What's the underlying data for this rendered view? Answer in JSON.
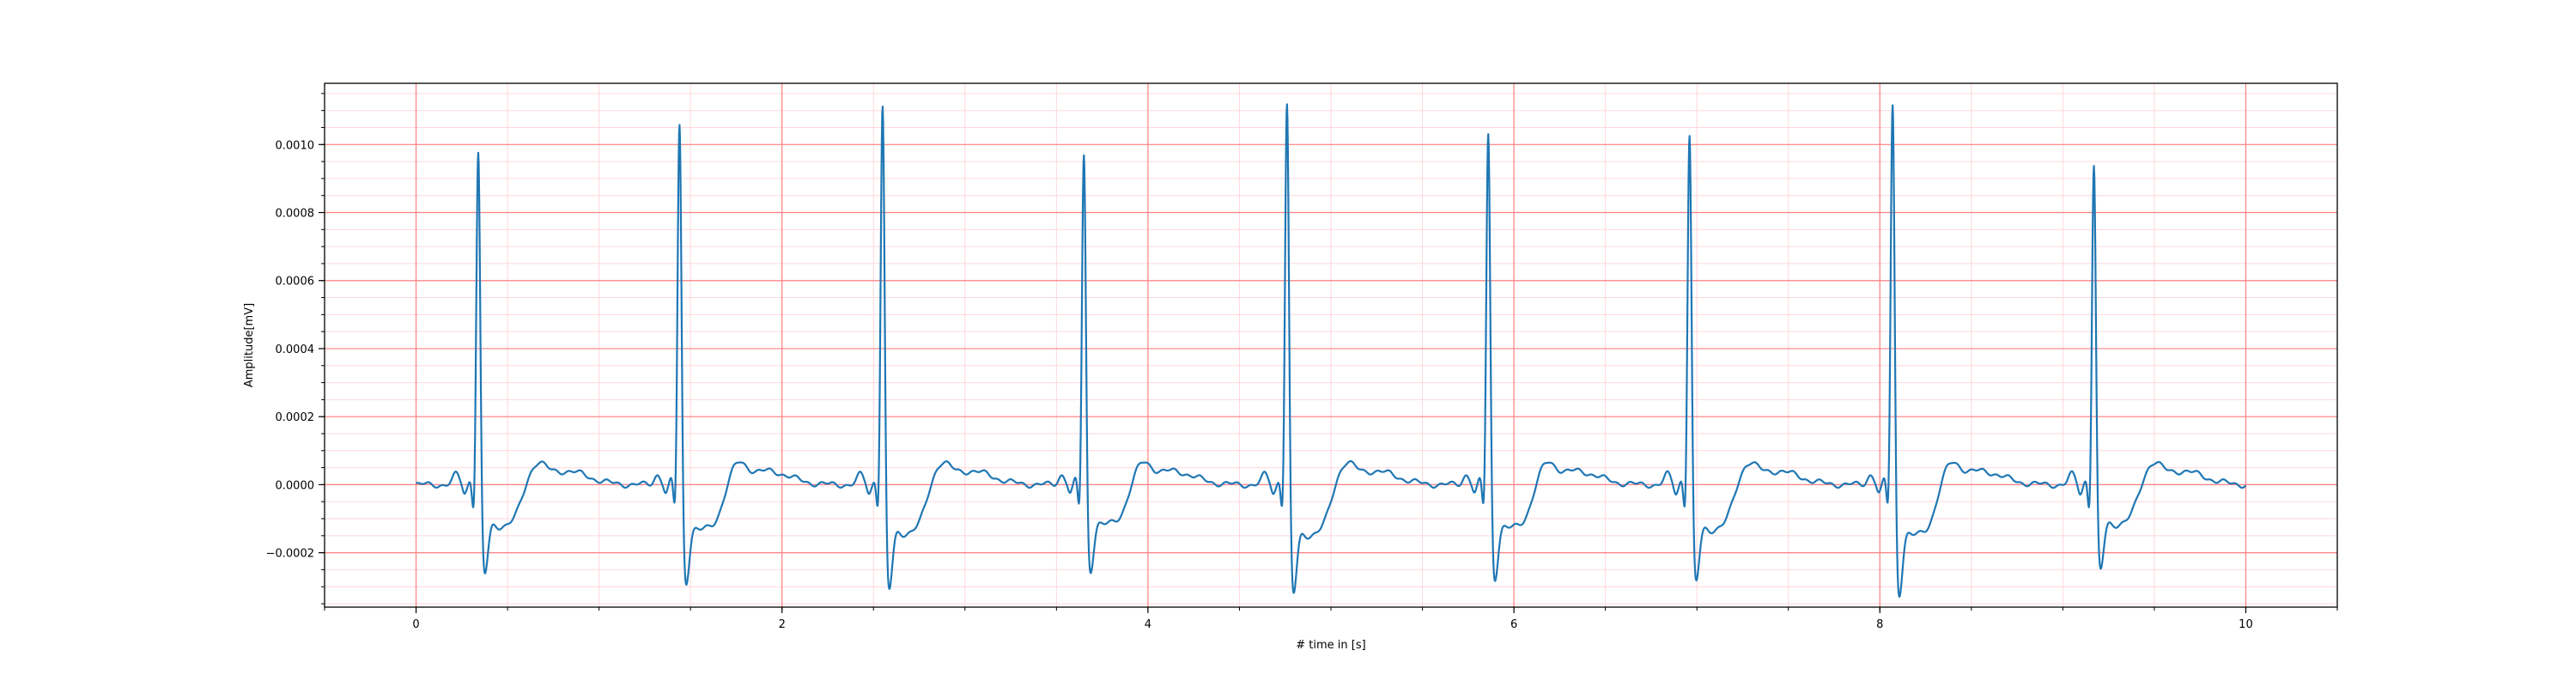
{
  "chart_data": {
    "type": "line",
    "title": "",
    "xlabel": "# time in [s]",
    "ylabel": "Amplitude[mV]",
    "xlim": [
      -0.5,
      10.5
    ],
    "ylim": [
      -0.00036,
      0.00118
    ],
    "grid": {
      "major": true,
      "minor": true,
      "major_color": "#ff8080",
      "minor_color": "#ffd6dc"
    },
    "x_ticks": [
      {
        "value": 0,
        "label": "0"
      },
      {
        "value": 2,
        "label": "2"
      },
      {
        "value": 4,
        "label": "4"
      },
      {
        "value": 6,
        "label": "6"
      },
      {
        "value": 8,
        "label": "8"
      },
      {
        "value": 10,
        "label": "10"
      }
    ],
    "y_ticks": [
      {
        "value": -0.0002,
        "label": "−0.0002"
      },
      {
        "value": 0.0,
        "label": "0.0000"
      },
      {
        "value": 0.0002,
        "label": "0.0002"
      },
      {
        "value": 0.0004,
        "label": "0.0004"
      },
      {
        "value": 0.0006,
        "label": "0.0006"
      },
      {
        "value": 0.0008,
        "label": "0.0008"
      },
      {
        "value": 0.001,
        "label": "0.0010"
      }
    ],
    "x_minor_step": 0.5,
    "y_minor_step": 5e-05,
    "line_color": "#1f77b4",
    "beats": [
      {
        "time": 0.34,
        "peak": 0.00094,
        "trough": -0.00023
      },
      {
        "time": 1.44,
        "peak": 0.00103,
        "trough": -0.00025
      },
      {
        "time": 2.55,
        "peak": 0.00109,
        "trough": -0.00027
      },
      {
        "time": 3.65,
        "peak": 0.00093,
        "trough": -0.00022
      },
      {
        "time": 4.76,
        "peak": 0.0011,
        "trough": -0.00028
      },
      {
        "time": 5.86,
        "peak": 0.001,
        "trough": -0.00024
      },
      {
        "time": 6.96,
        "peak": 0.001,
        "trough": -0.00025
      },
      {
        "time": 8.07,
        "peak": 0.0011,
        "trough": -0.00028
      },
      {
        "time": 9.17,
        "peak": 0.0009,
        "trough": -0.00022
      }
    ],
    "t_start": 0,
    "t_end": 10
  }
}
